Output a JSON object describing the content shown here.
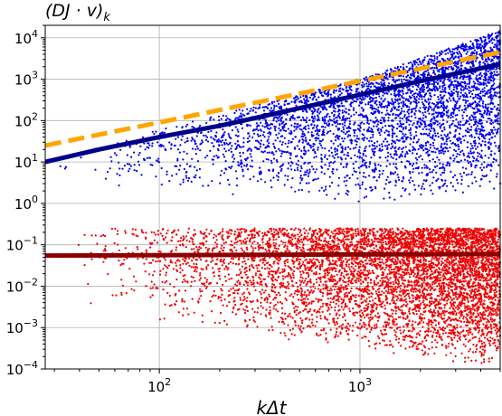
{
  "chart_data": {
    "type": "scatter",
    "title": "(DJ · v)_k",
    "xlabel": "kΔt",
    "ylabel": "",
    "xscale": "log",
    "yscale": "log",
    "xlim": [
      27,
      5000
    ],
    "ylim": [
      0.0001,
      20000
    ],
    "grid": true,
    "legend": "none",
    "x_tick_labels": [
      {
        "value": 100,
        "base": "10",
        "exp": "2"
      },
      {
        "value": 1000,
        "base": "10",
        "exp": "3"
      }
    ],
    "y_tick_labels": [
      {
        "value": 0.0001,
        "base": "10",
        "exp": "−4"
      },
      {
        "value": 0.001,
        "base": "10",
        "exp": "−3"
      },
      {
        "value": 0.01,
        "base": "10",
        "exp": "−2"
      },
      {
        "value": 0.1,
        "base": "10",
        "exp": "−1"
      },
      {
        "value": 1,
        "base": "10",
        "exp": "0"
      },
      {
        "value": 10,
        "base": "10",
        "exp": "1"
      },
      {
        "value": 100,
        "base": "10",
        "exp": "2"
      },
      {
        "value": 1000,
        "base": "10",
        "exp": "3"
      },
      {
        "value": 10000,
        "base": "10",
        "exp": "4"
      }
    ],
    "scatter_series": [
      {
        "color": "#0000ee",
        "x_range": [
          27,
          5000
        ],
        "upper_envelope": {
          "x": [
            27,
            100,
            1000,
            5000
          ],
          "y": [
            10,
            60,
            1000,
            15000
          ]
        },
        "lower_envelope": {
          "x": [
            40,
            100,
            1000,
            5000
          ],
          "y": [
            2,
            2,
            1,
            2
          ]
        },
        "points": 4000
      },
      {
        "color": "#ee0000",
        "x_range": [
          27,
          5000
        ],
        "upper_envelope": {
          "x": [
            27,
            5000
          ],
          "y": [
            0.25,
            0.25
          ]
        },
        "lower_envelope": {
          "x": [
            27,
            100,
            1000,
            5000
          ],
          "y": [
            0.006,
            0.001,
            0.0003,
            0.0001
          ]
        },
        "points": 6000
      }
    ],
    "line_series": [
      {
        "style": "solid-thick",
        "color": "#00008b",
        "x": [
          27,
          50,
          100,
          200,
          500,
          1000,
          2000,
          5000
        ],
        "y": [
          10,
          20,
          40,
          75,
          200,
          420,
          900,
          2300
        ]
      },
      {
        "style": "dashed-thick",
        "color": "#ffa500",
        "x": [
          27,
          100,
          1000,
          5000
        ],
        "y": [
          25,
          90,
          900,
          4500
        ]
      },
      {
        "style": "solid-thick",
        "color": "#8b0000",
        "x": [
          27,
          5000
        ],
        "y": [
          0.055,
          0.06
        ]
      }
    ]
  }
}
